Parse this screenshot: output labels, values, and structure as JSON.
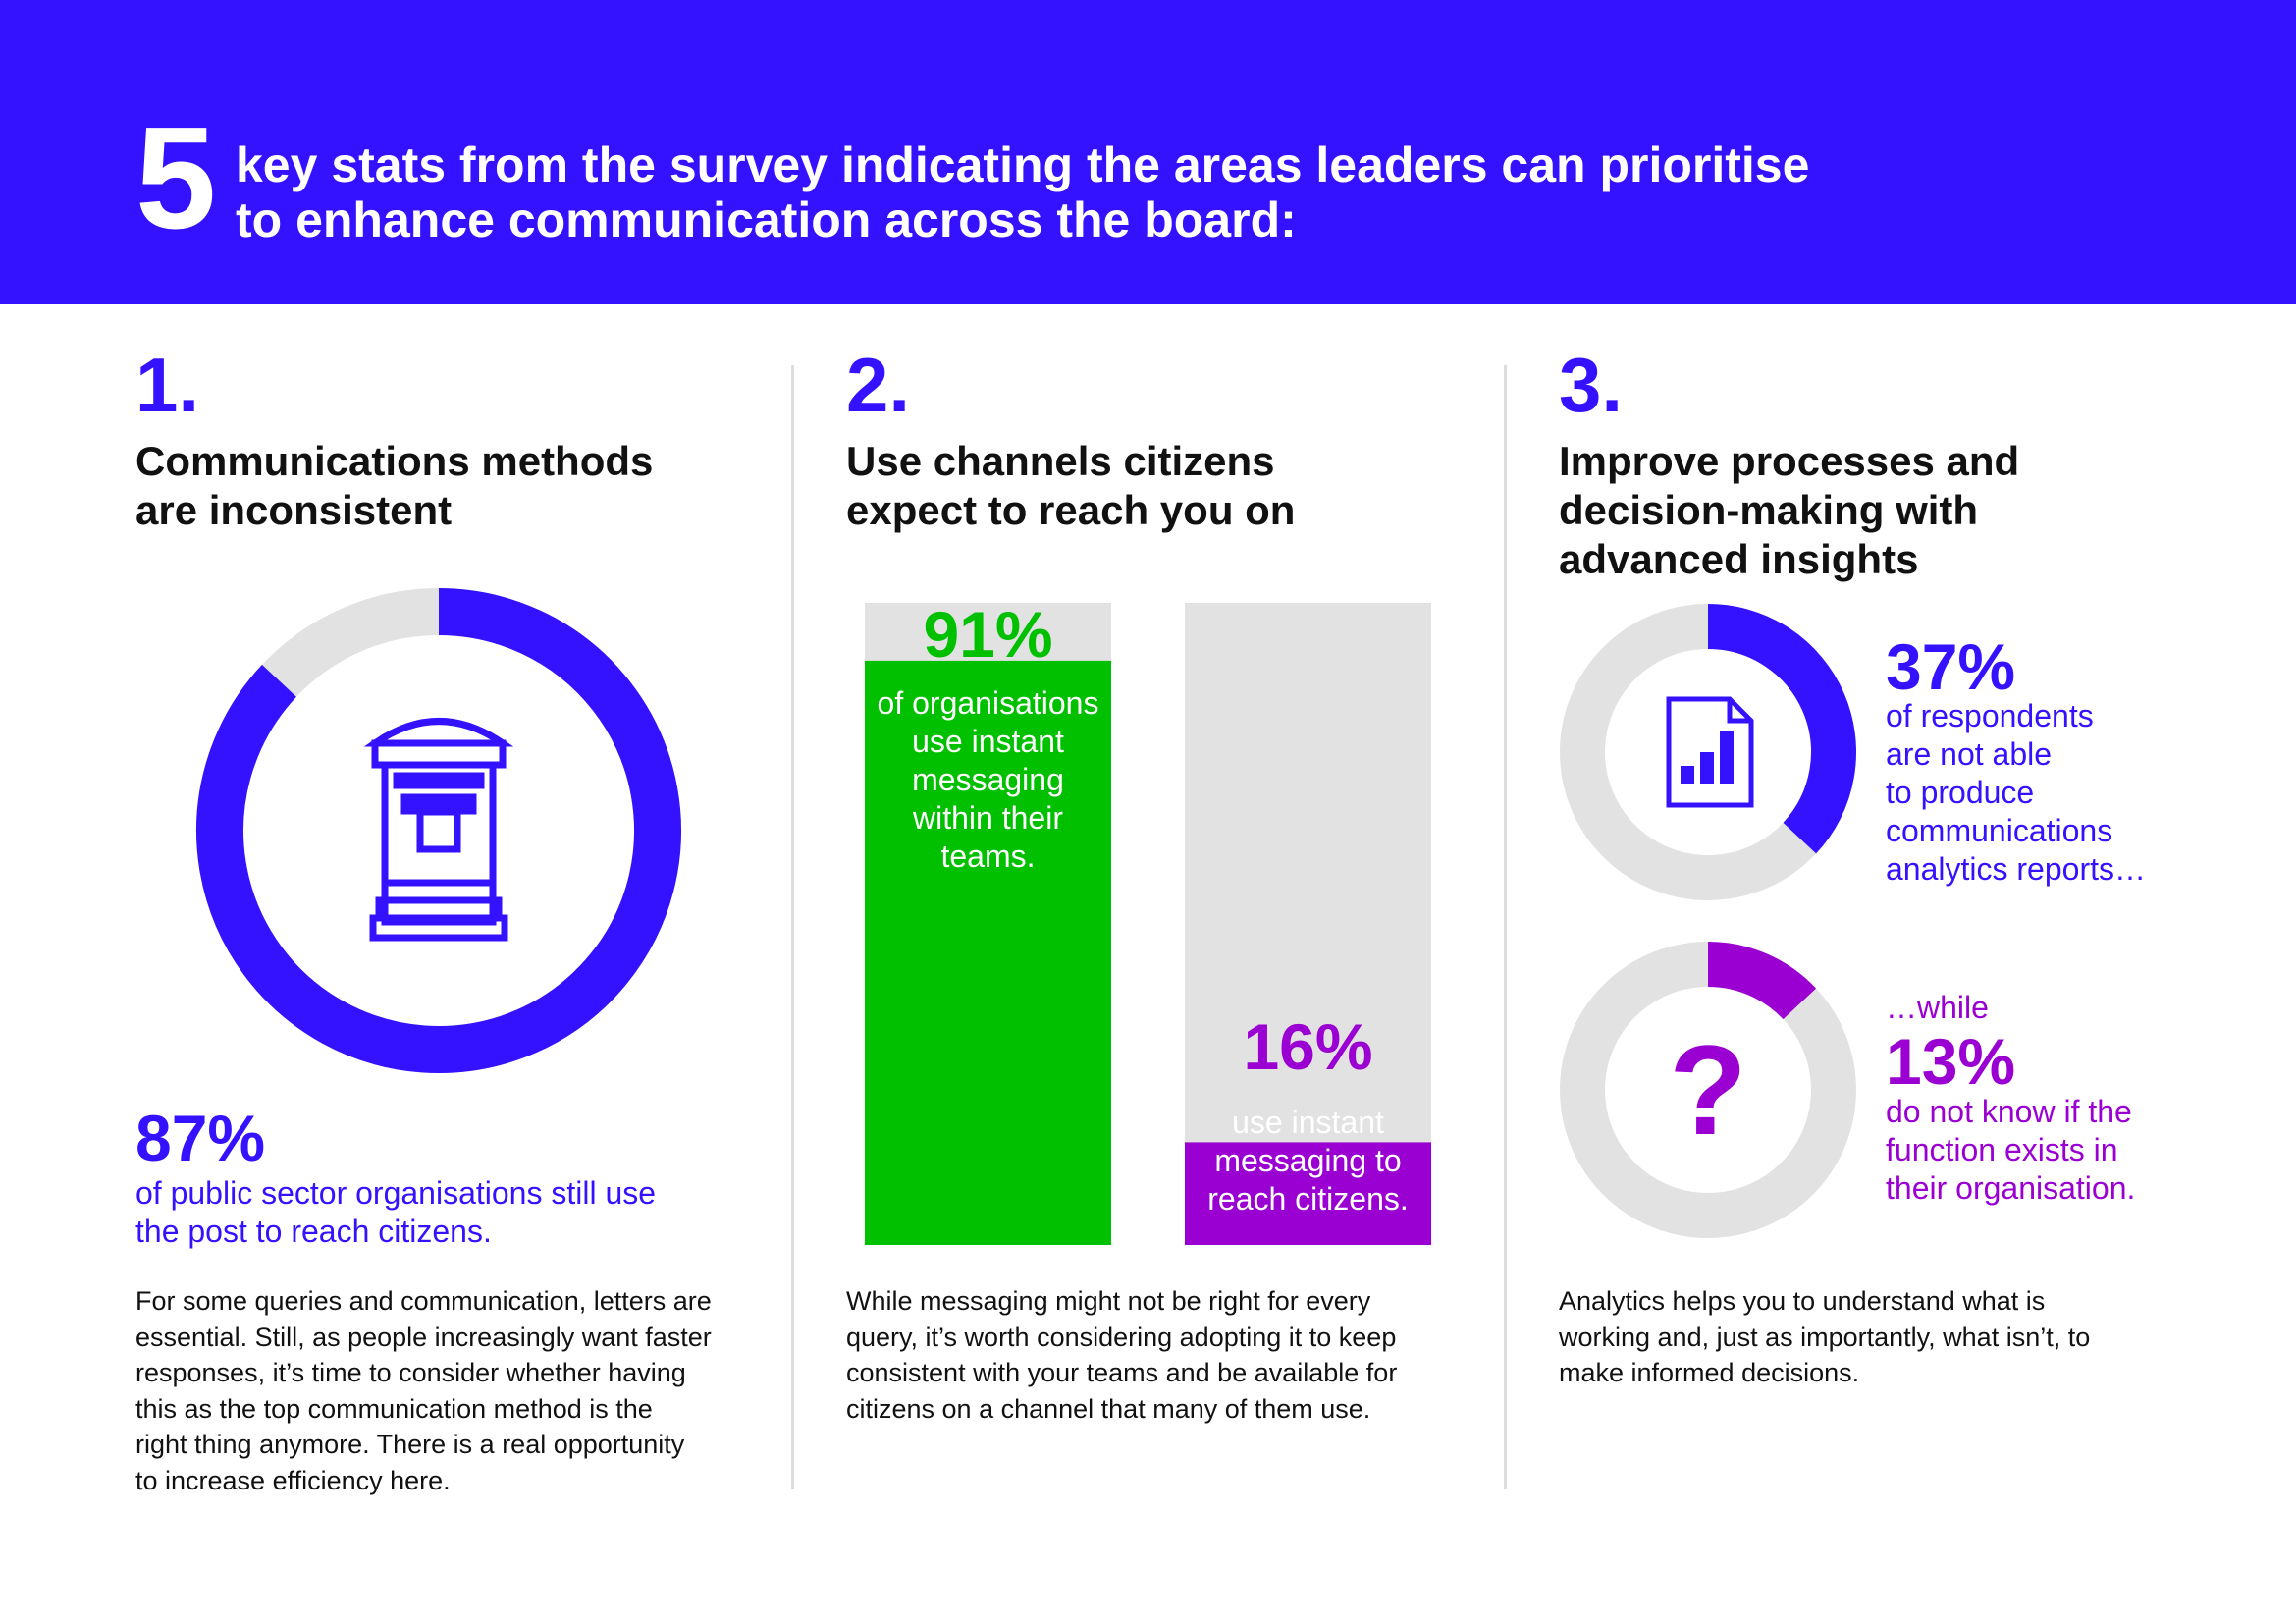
{
  "colors": {
    "blue": "#3412FF",
    "green": "#00C000",
    "purple": "#9B00D3",
    "grey": "#E2E2E2",
    "text": "#111111"
  },
  "header": {
    "number": "5",
    "lines": [
      "key stats from the survey indicating the areas leaders can prioritise",
      "to enhance communication across the board:"
    ]
  },
  "sections": [
    {
      "number": "1.",
      "heading": [
        "Communications methods",
        "are inconsistent"
      ],
      "stat": "87%",
      "stat_text": [
        "of public sector organisations still use",
        "the post to reach citizens."
      ],
      "icon": "post-box-icon",
      "body": [
        "For some queries and communication, letters are",
        "essential. Still, as people increasingly want faster",
        "responses, it’s time to consider whether having",
        "this as the top communication method is the",
        "right thing anymore. There is a real opportunity",
        "to increase efficiency here."
      ]
    },
    {
      "number": "2.",
      "heading": [
        "Use channels citizens",
        "expect to reach you on"
      ],
      "bars": [
        {
          "stat": "91%",
          "text": [
            "of organisations",
            "use instant",
            "messaging",
            "within their",
            "teams."
          ]
        },
        {
          "stat": "16%",
          "text": [
            "use instant",
            "messaging to",
            "reach citizens."
          ]
        }
      ],
      "body": [
        "While messaging might not be right for every",
        "query, it’s worth considering adopting it to keep",
        "consistent with your teams and be available for",
        "citizens on a channel that many of them use."
      ]
    },
    {
      "number": "3.",
      "heading": [
        "Improve processes and",
        "decision-making with",
        "advanced insights"
      ],
      "stat_a": "37%",
      "text_a": [
        "of respondents",
        "are not able",
        "to produce",
        "communications",
        "analytics reports…"
      ],
      "icon_a": "report-chart-icon",
      "pre_b": "…while",
      "stat_b": "13%",
      "text_b": [
        "do not know if the",
        "function exists in",
        "their organisation."
      ],
      "icon_b": "question-mark-icon",
      "body": [
        "Analytics helps you to understand what is",
        "working and, just as importantly, what isn’t, to",
        "make informed decisions."
      ]
    }
  ],
  "chart_data": [
    {
      "type": "pie",
      "values": [
        87,
        13
      ],
      "categories": [
        "use the post to reach citizens",
        "other"
      ],
      "title": ""
    },
    {
      "type": "bar",
      "categories": [
        "use instant messaging within their teams",
        "use instant messaging to reach citizens"
      ],
      "values": [
        91,
        16
      ],
      "ylim": [
        0,
        100
      ]
    },
    {
      "type": "pie",
      "values": [
        37,
        63
      ],
      "categories": [
        "not able to produce communications analytics reports",
        "other"
      ]
    },
    {
      "type": "pie",
      "values": [
        13,
        87
      ],
      "categories": [
        "do not know if the function exists",
        "other"
      ]
    }
  ]
}
